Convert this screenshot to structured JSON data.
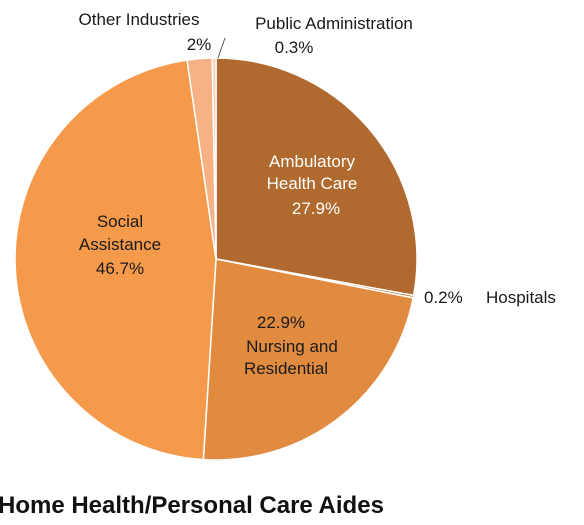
{
  "chart_data": {
    "type": "pie",
    "title": "Home Health/Personal Care Aides",
    "slices": [
      {
        "name": "Ambulatory Health Care",
        "label_lines": [
          "Ambulatory",
          "Health Care"
        ],
        "value_label": "27.9%",
        "value": 27.9,
        "color": "#B0692E"
      },
      {
        "name": "Hospitals",
        "label_lines": [
          "Hospitals"
        ],
        "value_label": "0.2%",
        "value": 0.2,
        "color": "#C9793A"
      },
      {
        "name": "Nursing and Residential",
        "label_lines": [
          "Nursing and",
          "Residential"
        ],
        "value_label": "22.9%",
        "value": 22.9,
        "color": "#E08B40"
      },
      {
        "name": "Social Assistance",
        "label_lines": [
          "Social",
          "Assistance"
        ],
        "value_label": "46.7%",
        "value": 46.7,
        "color": "#F59A4B"
      },
      {
        "name": "Other Industries",
        "label_lines": [
          "Other Industries"
        ],
        "value_label": "2%",
        "value": 2.0,
        "color": "#F6B185"
      },
      {
        "name": "Public Administration",
        "label_lines": [
          "Public Administration"
        ],
        "value_label": "0.3%",
        "value": 0.3,
        "color": "#F8CFB2"
      }
    ]
  }
}
